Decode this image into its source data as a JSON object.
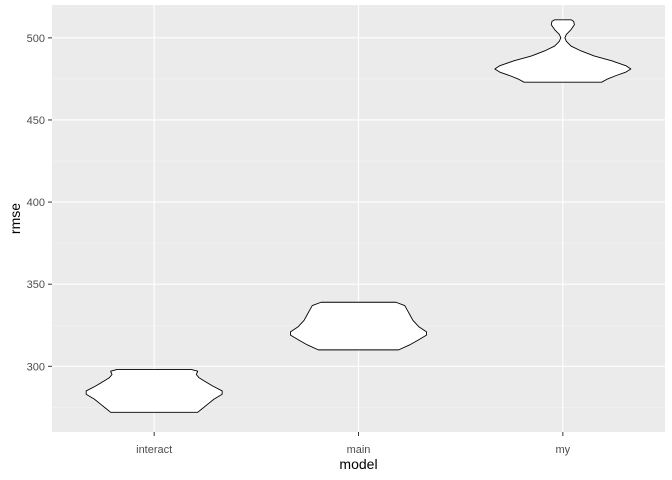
{
  "chart_data": {
    "type": "violin",
    "xlabel": "model",
    "ylabel": "rmse",
    "categories": [
      "interact",
      "main",
      "my"
    ],
    "ylim": [
      260,
      520
    ],
    "yticks": [
      300,
      350,
      400,
      450,
      500
    ],
    "ytick_labels": [
      "300",
      "350",
      "400",
      "450",
      "500"
    ],
    "grid": true,
    "legend": "none",
    "colors": {
      "panel_background": "#ebebeb",
      "grid_major": "#ffffff",
      "grid_minor": "#f5f5f5",
      "violin_fill": "#ffffff",
      "violin_stroke": "#000000"
    },
    "violins": [
      {
        "category": "interact",
        "profile": [
          [
            272,
            0.64
          ],
          [
            274,
            0.7
          ],
          [
            277,
            0.79
          ],
          [
            280,
            0.88
          ],
          [
            283,
            1.0
          ],
          [
            285,
            1.0
          ],
          [
            288,
            0.86
          ],
          [
            291,
            0.74
          ],
          [
            293,
            0.66
          ],
          [
            295,
            0.62
          ],
          [
            297,
            0.64
          ],
          [
            298,
            0.55
          ]
        ]
      },
      {
        "category": "main",
        "profile": [
          [
            310,
            0.59
          ],
          [
            313,
            0.75
          ],
          [
            316,
            0.88
          ],
          [
            319,
            1.0
          ],
          [
            321,
            1.0
          ],
          [
            324,
            0.89
          ],
          [
            328,
            0.8
          ],
          [
            331,
            0.76
          ],
          [
            334,
            0.72
          ],
          [
            337,
            0.68
          ],
          [
            339,
            0.55
          ]
        ]
      },
      {
        "category": "my",
        "profile": [
          [
            473,
            0.57
          ],
          [
            475,
            0.66
          ],
          [
            477,
            0.78
          ],
          [
            479,
            0.92
          ],
          [
            481,
            1.0
          ],
          [
            483,
            0.93
          ],
          [
            486,
            0.72
          ],
          [
            489,
            0.46
          ],
          [
            492,
            0.27
          ],
          [
            495,
            0.12
          ],
          [
            498,
            0.05
          ],
          [
            500,
            0.03
          ],
          [
            502,
            0.05
          ],
          [
            505,
            0.12
          ],
          [
            508,
            0.17
          ],
          [
            510,
            0.16
          ],
          [
            511,
            0.12
          ]
        ]
      }
    ]
  }
}
